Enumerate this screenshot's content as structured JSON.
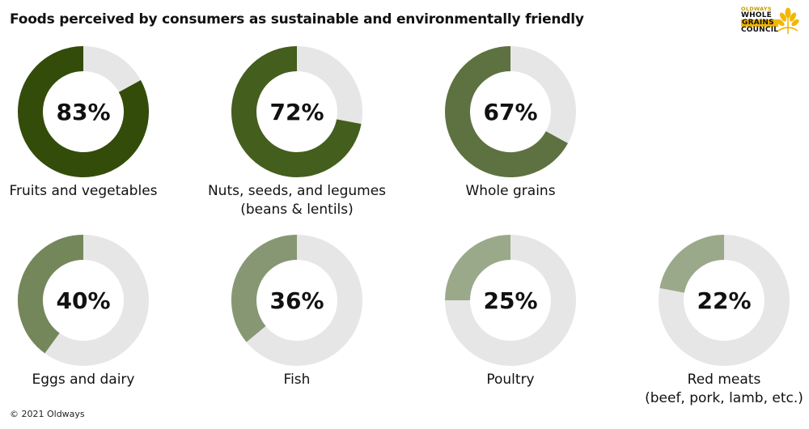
{
  "title": "Foods perceived by consumers as sustainable and environmentally friendly",
  "credit": "© 2021 Oldways",
  "logo": {
    "line1": "OLDWAYS",
    "line2": "WHOLE",
    "line3": "GRAINS",
    "line4": "COUNCIL",
    "icon": "wheat-icon",
    "color": "#f2b705"
  },
  "colors": {
    "track": "#e6e6e6",
    "series": [
      "#334c0a",
      "#445e1d",
      "#5d7240",
      "#74875a",
      "#879773",
      "#9aa98a",
      "#9aa98a"
    ]
  },
  "chart_data": {
    "type": "donut",
    "title": "Foods perceived by consumers as sustainable and environmentally friendly",
    "unit": "%",
    "items": [
      {
        "category": [
          "Fruits and vegetables"
        ],
        "value": 83,
        "display": "83%"
      },
      {
        "category": [
          "Nuts, seeds, and legumes",
          "(beans & lentils)"
        ],
        "value": 72,
        "display": "72%"
      },
      {
        "category": [
          "Whole grains"
        ],
        "value": 67,
        "display": "67%"
      },
      {
        "category": [
          "Eggs and dairy"
        ],
        "value": 40,
        "display": "40%"
      },
      {
        "category": [
          "Fish"
        ],
        "value": 36,
        "display": "36%"
      },
      {
        "category": [
          "Poultry"
        ],
        "value": 25,
        "display": "25%"
      },
      {
        "category": [
          "Red meats",
          "(beef, pork, lamb, etc.)"
        ],
        "value": 22,
        "display": "22%"
      }
    ]
  }
}
